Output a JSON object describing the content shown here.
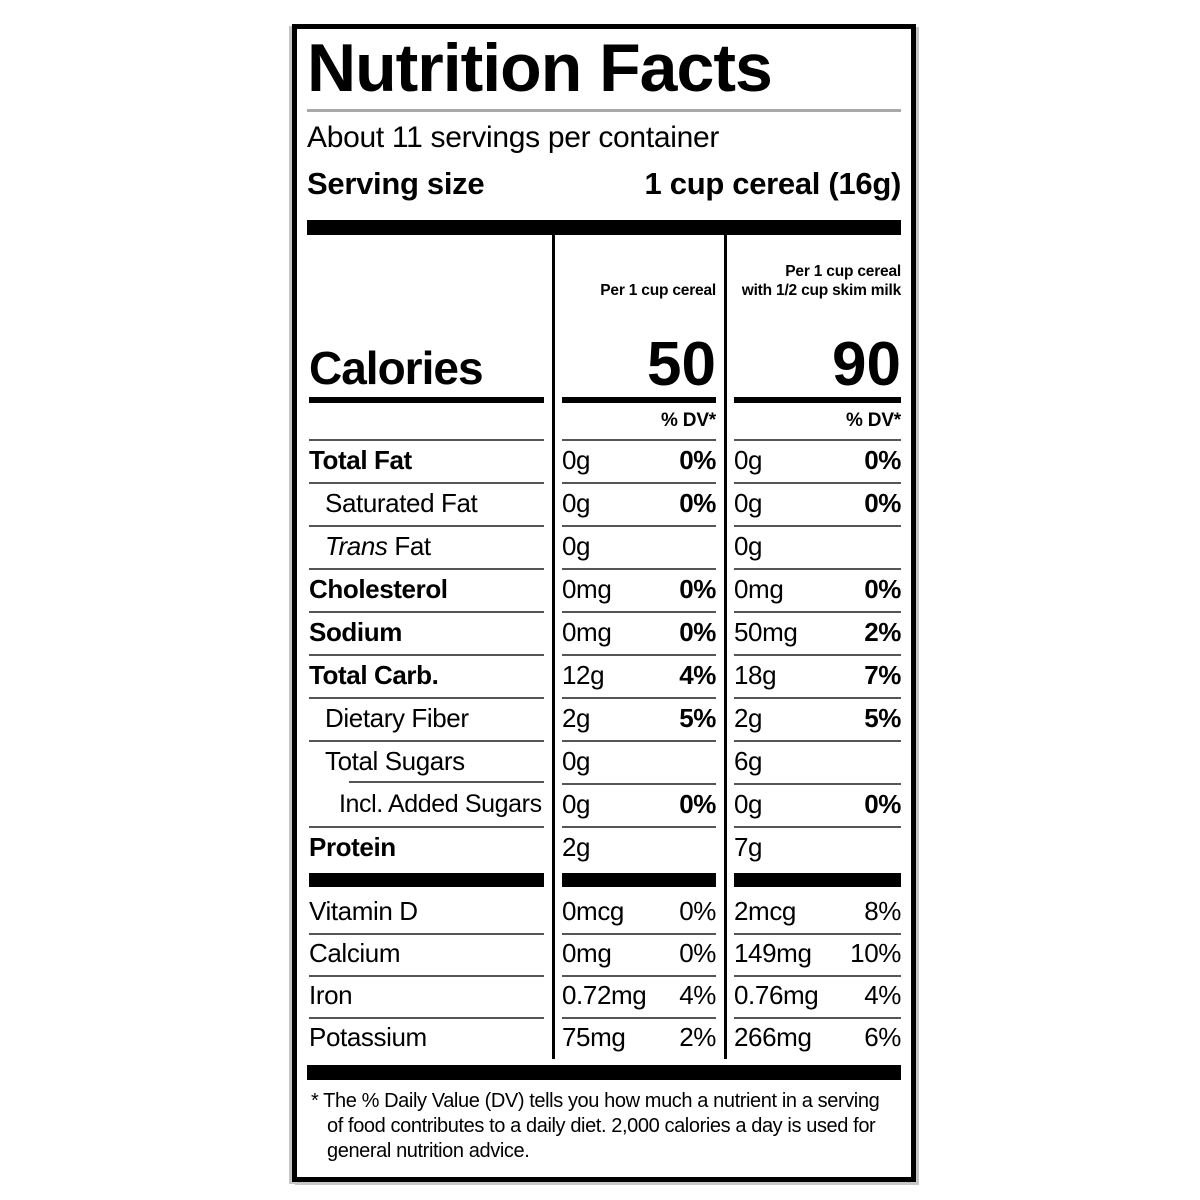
{
  "label": {
    "title": "Nutrition Facts",
    "servings_per_container": "About 11 servings per container",
    "serving_size": {
      "label": "Serving size",
      "value": "1 cup cereal (16g)"
    },
    "columns": {
      "cereal_header": "Per 1 cup cereal",
      "milk_header_line1": "Per 1 cup cereal",
      "milk_header_line2": "with 1/2 cup skim milk",
      "dv_header": "% DV*"
    },
    "calories": {
      "label": "Calories",
      "cereal": "50",
      "with_milk": "90"
    },
    "rows": [
      {
        "label": "Total Fat",
        "cereal_amount": "0g",
        "cereal_dv": "0%",
        "milk_amount": "0g",
        "milk_dv": "0%"
      },
      {
        "label": "Saturated Fat",
        "cereal_amount": "0g",
        "cereal_dv": "0%",
        "milk_amount": "0g",
        "milk_dv": "0%"
      },
      {
        "label_italic": "Trans",
        "label": " Fat",
        "cereal_amount": "0g",
        "cereal_dv": "",
        "milk_amount": "0g",
        "milk_dv": ""
      },
      {
        "label": "Cholesterol",
        "cereal_amount": "0mg",
        "cereal_dv": "0%",
        "milk_amount": "0mg",
        "milk_dv": "0%"
      },
      {
        "label": "Sodium",
        "cereal_amount": "0mg",
        "cereal_dv": "0%",
        "milk_amount": "50mg",
        "milk_dv": "2%"
      },
      {
        "label": "Total Carb.",
        "cereal_amount": "12g",
        "cereal_dv": "4%",
        "milk_amount": "18g",
        "milk_dv": "7%"
      },
      {
        "label": "Dietary Fiber",
        "cereal_amount": "2g",
        "cereal_dv": "5%",
        "milk_amount": "2g",
        "milk_dv": "5%"
      },
      {
        "label": "Total Sugars",
        "cereal_amount": "0g",
        "cereal_dv": "",
        "milk_amount": "6g",
        "milk_dv": ""
      },
      {
        "label": "Incl. Added Sugars",
        "cereal_amount": "0g",
        "cereal_dv": "0%",
        "milk_amount": "0g",
        "milk_dv": "0%"
      },
      {
        "label": "Protein",
        "cereal_amount": "2g",
        "cereal_dv": "",
        "milk_amount": "7g",
        "milk_dv": ""
      }
    ],
    "vitamins": [
      {
        "label": "Vitamin D",
        "cereal_amount": "0mcg",
        "cereal_dv": "0%",
        "milk_amount": "2mcg",
        "milk_dv": "8%"
      },
      {
        "label": "Calcium",
        "cereal_amount": "0mg",
        "cereal_dv": "0%",
        "milk_amount": "149mg",
        "milk_dv": "10%"
      },
      {
        "label": "Iron",
        "cereal_amount": "0.72mg",
        "cereal_dv": "4%",
        "milk_amount": "0.76mg",
        "milk_dv": "4%"
      },
      {
        "label": "Potassium",
        "cereal_amount": "75mg",
        "cereal_dv": "2%",
        "milk_amount": "266mg",
        "milk_dv": "6%"
      }
    ],
    "footnote_lines": [
      "* The % Daily Value (DV) tells you how much a nutrient in a serving",
      "of food contributes to a daily diet. 2,000 calories a day is used for",
      "general nutrition advice."
    ]
  }
}
